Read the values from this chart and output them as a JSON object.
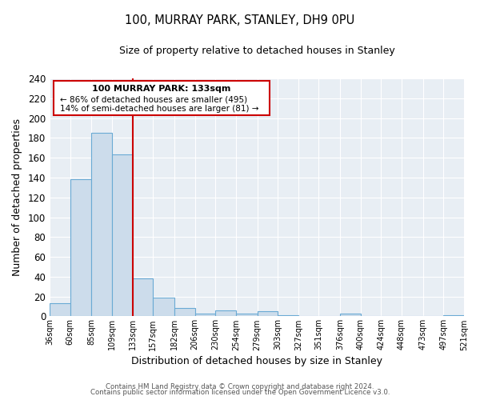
{
  "title": "100, MURRAY PARK, STANLEY, DH9 0PU",
  "subtitle": "Size of property relative to detached houses in Stanley",
  "xlabel": "Distribution of detached houses by size in Stanley",
  "ylabel": "Number of detached properties",
  "footer_line1": "Contains HM Land Registry data © Crown copyright and database right 2024.",
  "footer_line2": "Contains public sector information licensed under the Open Government Licence v3.0.",
  "bin_labels": [
    "36sqm",
    "60sqm",
    "85sqm",
    "109sqm",
    "133sqm",
    "157sqm",
    "182sqm",
    "206sqm",
    "230sqm",
    "254sqm",
    "279sqm",
    "303sqm",
    "327sqm",
    "351sqm",
    "376sqm",
    "400sqm",
    "424sqm",
    "448sqm",
    "473sqm",
    "497sqm",
    "521sqm"
  ],
  "bin_edges": [
    36,
    60,
    85,
    109,
    133,
    157,
    182,
    206,
    230,
    254,
    279,
    303,
    327,
    351,
    376,
    400,
    424,
    448,
    473,
    497,
    521
  ],
  "bar_values": [
    13,
    138,
    185,
    163,
    38,
    19,
    8,
    3,
    6,
    3,
    5,
    1,
    0,
    0,
    3,
    0,
    0,
    0,
    0,
    1
  ],
  "bar_color": "#ccdceb",
  "bar_edge_color": "#6aaad4",
  "vline_x": 133,
  "vline_color": "#cc0000",
  "ylim": [
    0,
    240
  ],
  "yticks": [
    0,
    20,
    40,
    60,
    80,
    100,
    120,
    140,
    160,
    180,
    200,
    220,
    240
  ],
  "annotation_title": "100 MURRAY PARK: 133sqm",
  "annotation_line1": "← 86% of detached houses are smaller (495)",
  "annotation_line2": "14% of semi-detached houses are larger (81) →",
  "plot_bg_color": "#e8eef4",
  "fig_bg_color": "#ffffff",
  "grid_color": "#ffffff",
  "annotation_bg": "#ffffff",
  "annotation_border": "#cc0000"
}
